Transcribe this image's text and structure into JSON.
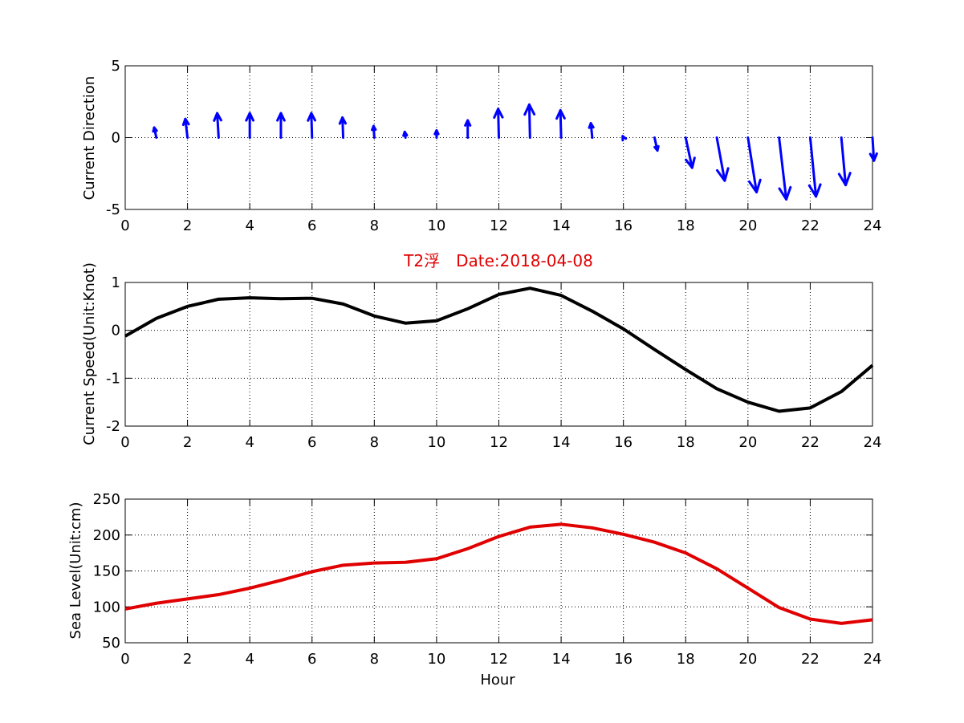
{
  "title": "T2浮　Date:2018-04-08",
  "xlabel": "Hour",
  "chart_data": [
    {
      "type": "quiver",
      "ylabel": "Current Direction",
      "xlim": [
        0,
        24
      ],
      "ylim": [
        -5,
        5
      ],
      "xticks": [
        "0",
        "2",
        "4",
        "6",
        "8",
        "10",
        "12",
        "14",
        "16",
        "18",
        "20",
        "22",
        "24"
      ],
      "yticks": [
        "5",
        "0",
        "-5"
      ],
      "grid": true,
      "color": "#0000ff",
      "x": [
        1,
        2,
        3,
        4,
        5,
        6,
        7,
        8,
        9,
        10,
        11,
        12,
        13,
        14,
        15,
        16,
        17,
        18,
        19,
        20,
        21,
        22,
        23,
        24
      ],
      "u": [
        -0.15,
        -0.15,
        -0.1,
        0,
        0,
        -0.05,
        -0.05,
        -0.05,
        -0.05,
        0,
        0,
        -0.05,
        -0.05,
        -0.05,
        -0.1,
        -0.05,
        0.2,
        0.45,
        0.55,
        0.6,
        0.5,
        0.4,
        0.3,
        0.1
      ],
      "v": [
        0.7,
        1.3,
        1.7,
        1.7,
        1.7,
        1.7,
        1.4,
        0.8,
        0.4,
        0.5,
        1.2,
        2.0,
        2.3,
        1.9,
        1.0,
        0.1,
        -0.9,
        -2.1,
        -3.0,
        -3.8,
        -4.3,
        -4.1,
        -3.3,
        -1.6
      ]
    },
    {
      "type": "line",
      "ylabel": "Current Speed(Unit:Knot)",
      "xlim": [
        0,
        24
      ],
      "ylim": [
        -2,
        1
      ],
      "xticks": [
        "0",
        "2",
        "4",
        "6",
        "8",
        "10",
        "12",
        "14",
        "16",
        "18",
        "20",
        "22",
        "24"
      ],
      "yticks": [
        "1",
        "0",
        "-1",
        "-2"
      ],
      "grid": true,
      "color": "#000000",
      "x": [
        0,
        1,
        2,
        3,
        4,
        5,
        6,
        7,
        8,
        9,
        10,
        11,
        12,
        13,
        14,
        15,
        16,
        17,
        18,
        19,
        20,
        21,
        22,
        23,
        24
      ],
      "y": [
        -0.12,
        0.25,
        0.5,
        0.65,
        0.68,
        0.66,
        0.67,
        0.55,
        0.3,
        0.15,
        0.2,
        0.45,
        0.75,
        0.88,
        0.73,
        0.4,
        0.03,
        -0.4,
        -0.82,
        -1.22,
        -1.5,
        -1.69,
        -1.62,
        -1.28,
        -0.73
      ]
    },
    {
      "type": "line",
      "ylabel": "Sea Level(Unit:cm)",
      "xlim": [
        0,
        24
      ],
      "ylim": [
        50,
        250
      ],
      "xticks": [
        "0",
        "2",
        "4",
        "6",
        "8",
        "10",
        "12",
        "14",
        "16",
        "18",
        "20",
        "22",
        "24"
      ],
      "yticks": [
        "250",
        "200",
        "150",
        "100",
        "50"
      ],
      "grid": true,
      "color": "#e00000",
      "x": [
        0,
        1,
        2,
        3,
        4,
        5,
        6,
        7,
        8,
        9,
        10,
        11,
        12,
        13,
        14,
        15,
        16,
        17,
        18,
        19,
        20,
        21,
        22,
        23,
        24
      ],
      "y": [
        97,
        105,
        111,
        117,
        126,
        137,
        149,
        158,
        161,
        162,
        167,
        181,
        198,
        211,
        215,
        210,
        201,
        190,
        175,
        153,
        126,
        99,
        83,
        77,
        82
      ]
    }
  ]
}
